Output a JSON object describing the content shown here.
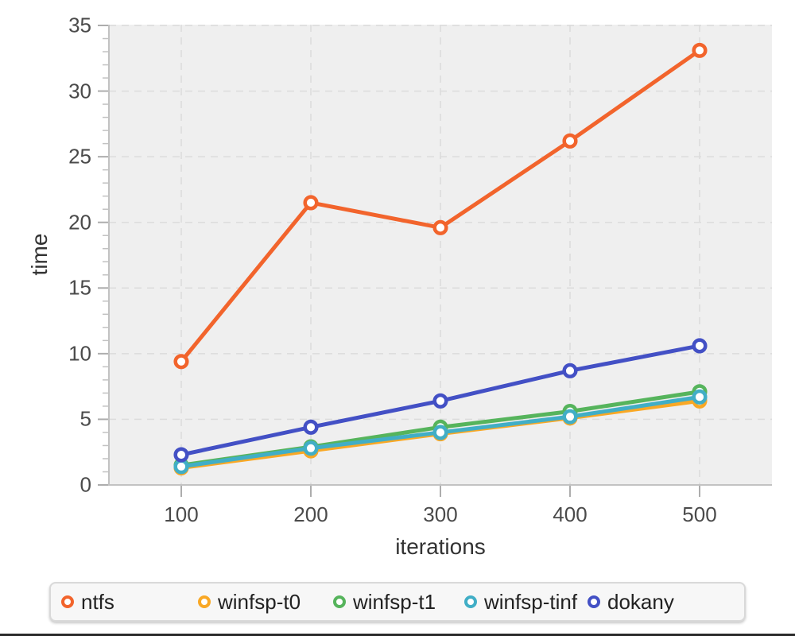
{
  "chart_data": {
    "type": "line",
    "title": "",
    "xlabel": "iterations",
    "ylabel": "time",
    "x": [
      100,
      200,
      300,
      400,
      500
    ],
    "series": [
      {
        "name": "ntfs",
        "color": "#F2642C",
        "values": [
          9.4,
          21.5,
          19.6,
          26.2,
          33.1
        ]
      },
      {
        "name": "winfsp-t0",
        "color": "#F9A825",
        "values": [
          1.3,
          2.6,
          3.9,
          5.1,
          6.4
        ]
      },
      {
        "name": "winfsp-t1",
        "color": "#56B45C",
        "values": [
          1.5,
          2.9,
          4.4,
          5.6,
          7.1
        ]
      },
      {
        "name": "winfsp-tinf",
        "color": "#41AEC6",
        "values": [
          1.4,
          2.8,
          4.0,
          5.2,
          6.7
        ]
      },
      {
        "name": "dokany",
        "color": "#4350C5",
        "values": [
          2.3,
          4.4,
          6.4,
          8.7,
          10.6
        ]
      }
    ],
    "xlim": [
      44,
      556
    ],
    "ylim": [
      0,
      35
    ],
    "x_ticks": [
      100,
      200,
      300,
      400,
      500
    ],
    "y_major_ticks": [
      0,
      5,
      10,
      15,
      20,
      25,
      30,
      35
    ],
    "y_minor_step": 1,
    "grid": "dashed",
    "legend_position": "bottom",
    "marker": "open-circle"
  },
  "style_colors": {
    "plot_background": "#efefef",
    "gridline": "#dcdcdc",
    "spine": "#c2c2c2",
    "tick": "#adadad",
    "tick_label": "#4a4a4a",
    "axis_title": "#333333",
    "legend_background": "#f7f7f7",
    "legend_border": "#d9d9d9",
    "legend_text": "#222222"
  }
}
